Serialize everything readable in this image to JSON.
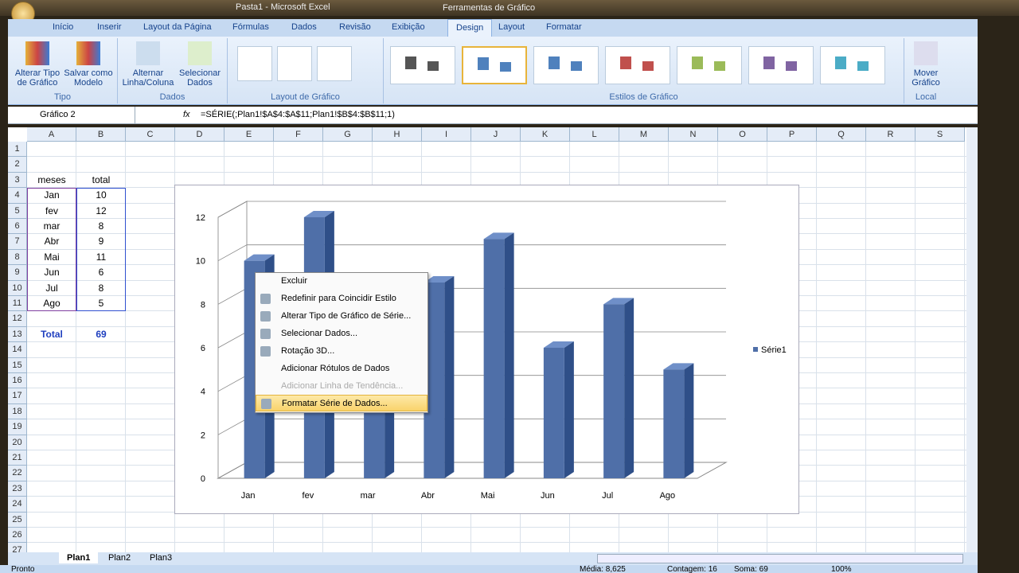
{
  "window": {
    "title": "Pasta1 - Microsoft Excel",
    "context_tools": "Ferramentas de Gráfico"
  },
  "tabs": [
    "Início",
    "Inserir",
    "Layout da Página",
    "Fórmulas",
    "Dados",
    "Revisão",
    "Exibição",
    "Design",
    "Layout",
    "Formatar"
  ],
  "active_tab": "Design",
  "ribbon": {
    "tipo": {
      "label": "Tipo",
      "buttons": [
        "Alterar Tipo de Gráfico",
        "Salvar como Modelo"
      ]
    },
    "dados": {
      "label": "Dados",
      "buttons": [
        "Alternar Linha/Coluna",
        "Selecionar Dados"
      ]
    },
    "layout": {
      "label": "Layout de Gráfico"
    },
    "estilos": {
      "label": "Estilos de Gráfico",
      "colors": [
        "#555555",
        "#4f81bd",
        "#4f81bd",
        "#c0504d",
        "#9bbb59",
        "#8064a2",
        "#4bacc6"
      ]
    },
    "local": {
      "label": "Local",
      "buttons": [
        "Mover Gráfico"
      ]
    }
  },
  "formula_bar": {
    "name_box": "Gráfico 2",
    "fx": "fx",
    "formula": "=SÉRIE(;Plan1!$A$4:$A$11;Plan1!$B$4:$B$11;1)"
  },
  "columns": [
    "A",
    "B",
    "C",
    "D",
    "E",
    "F",
    "G",
    "H",
    "I",
    "J",
    "K",
    "L",
    "M",
    "N",
    "O",
    "P",
    "Q",
    "R",
    "S"
  ],
  "rows": [
    "1",
    "2",
    "3",
    "4",
    "5",
    "6",
    "7",
    "8",
    "9",
    "10",
    "11",
    "12",
    "13",
    "14",
    "15",
    "16",
    "17",
    "18",
    "19",
    "20",
    "21",
    "22",
    "23",
    "24",
    "25",
    "26",
    "27"
  ],
  "table": {
    "headers": [
      "meses",
      "total"
    ],
    "rows": [
      [
        "Jan",
        "10"
      ],
      [
        "fev",
        "12"
      ],
      [
        "mar",
        "8"
      ],
      [
        "Abr",
        "9"
      ],
      [
        "Mai",
        "11"
      ],
      [
        "Jun",
        "6"
      ],
      [
        "Jul",
        "8"
      ],
      [
        "Ago",
        "5"
      ]
    ],
    "total_label": "Total",
    "total_value": "69"
  },
  "chart_data": {
    "type": "bar",
    "categories": [
      "Jan",
      "fev",
      "mar",
      "Abr",
      "Mai",
      "Jun",
      "Jul",
      "Ago"
    ],
    "series": [
      {
        "name": "Série1",
        "values": [
          10,
          12,
          8,
          9,
          11,
          6,
          8,
          5
        ],
        "color": "#4f6fa8"
      }
    ],
    "ylim": [
      0,
      12
    ],
    "yticks": [
      "0",
      "2",
      "4",
      "6",
      "8",
      "10",
      "12"
    ],
    "grid": true,
    "legend": "right",
    "style": "3d-column"
  },
  "context_menu": [
    {
      "label": "Excluir",
      "state": "normal"
    },
    {
      "label": "Redefinir para Coincidir Estilo",
      "state": "normal"
    },
    {
      "label": "Alterar Tipo de Gráfico de Série...",
      "state": "normal"
    },
    {
      "label": "Selecionar Dados...",
      "state": "normal"
    },
    {
      "label": "Rotação 3D...",
      "state": "normal"
    },
    {
      "label": "Adicionar Rótulos de Dados",
      "state": "normal"
    },
    {
      "label": "Adicionar Linha de Tendência...",
      "state": "disabled"
    },
    {
      "label": "Formatar Série de Dados...",
      "state": "highlighted"
    }
  ],
  "sheets": [
    "Plan1",
    "Plan2",
    "Plan3"
  ],
  "active_sheet": "Plan1",
  "status": {
    "mode": "Pronto",
    "average": "Média: 8,625",
    "count": "Contagem: 16",
    "sum": "Soma: 69",
    "zoom": "100%"
  }
}
